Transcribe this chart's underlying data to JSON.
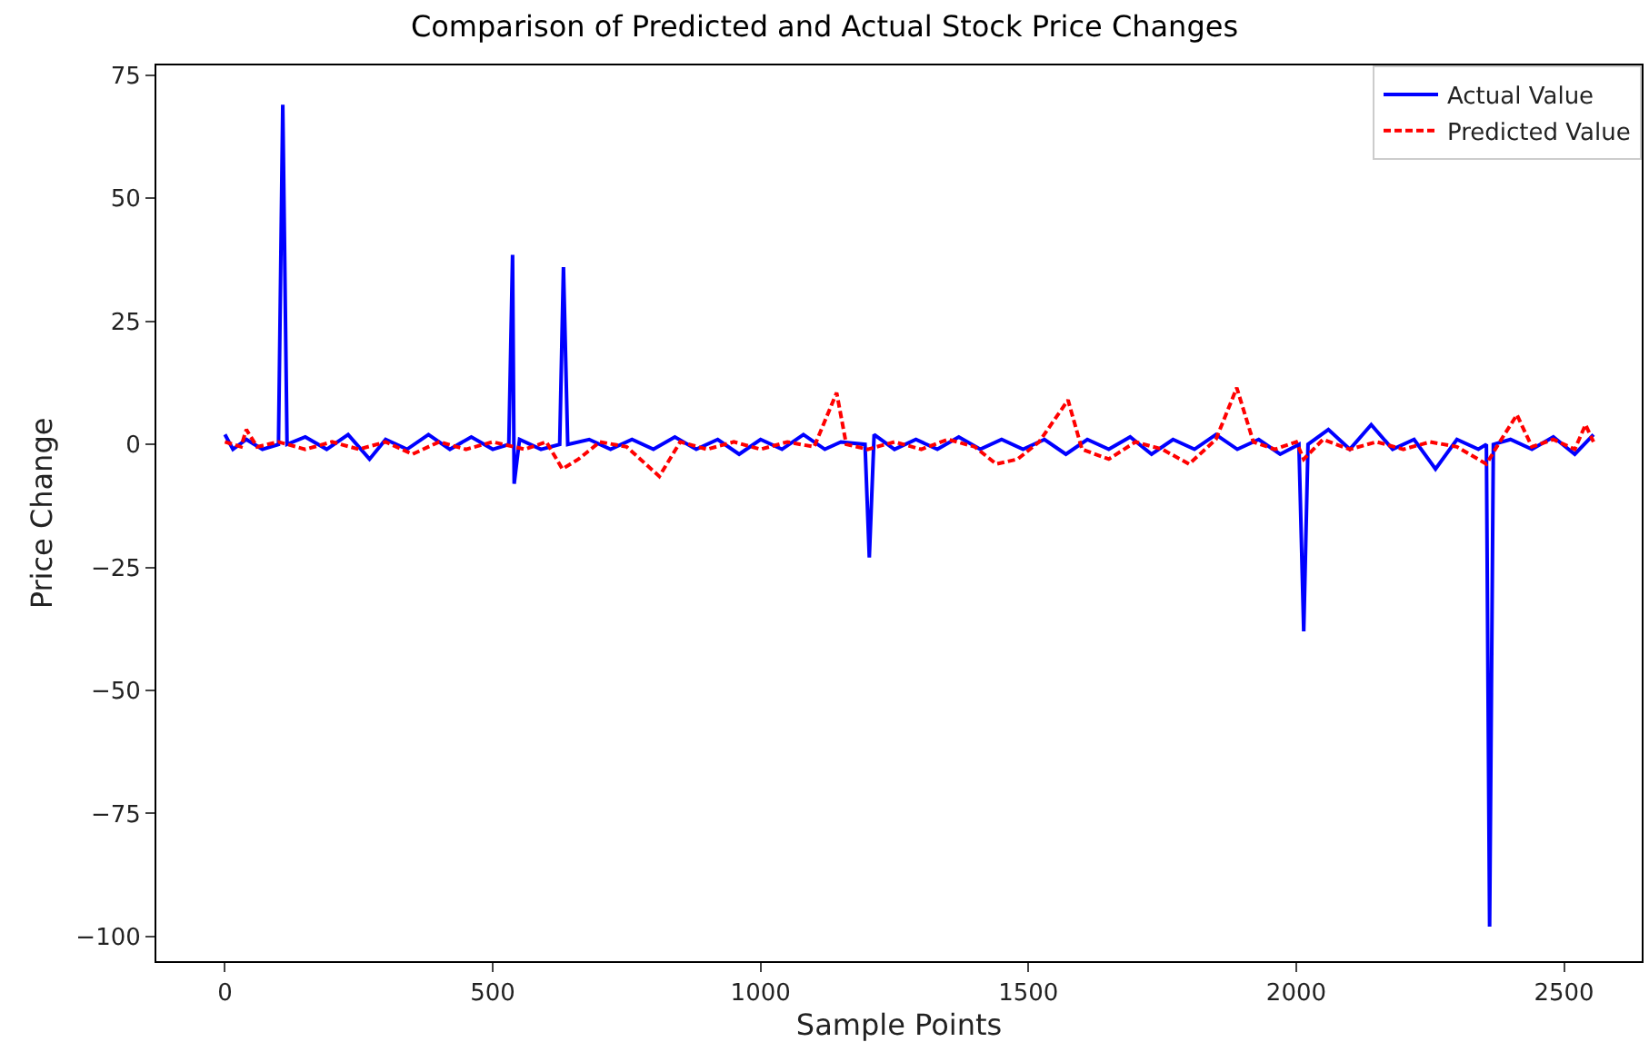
{
  "chart_data": {
    "type": "line",
    "title": "Comparison of Predicted and Actual Stock Price Changes",
    "xlabel": "Sample Points",
    "ylabel": "Price Change",
    "xlim": [
      -128,
      2645
    ],
    "ylim": [
      -105,
      77
    ],
    "xticks": [
      0,
      500,
      1000,
      1500,
      2000,
      2500
    ],
    "yticks": [
      -100,
      -75,
      -50,
      -25,
      0,
      25,
      50,
      75
    ],
    "grid": false,
    "legend": "top right",
    "marker": "none",
    "series": [
      {
        "name": "Actual Value",
        "color": "#0000ff",
        "line_style": "solid",
        "x": [
          0,
          15,
          40,
          70,
          100,
          108,
          116,
          150,
          190,
          230,
          270,
          300,
          340,
          380,
          420,
          460,
          500,
          530,
          537,
          540,
          550,
          590,
          625,
          632,
          640,
          680,
          720,
          760,
          800,
          840,
          880,
          920,
          960,
          1000,
          1040,
          1080,
          1120,
          1150,
          1195,
          1203,
          1212,
          1250,
          1290,
          1330,
          1370,
          1410,
          1450,
          1490,
          1530,
          1570,
          1610,
          1650,
          1690,
          1730,
          1770,
          1810,
          1850,
          1890,
          1930,
          1970,
          2005,
          2014,
          2022,
          2060,
          2100,
          2140,
          2180,
          2220,
          2260,
          2300,
          2340,
          2355,
          2361,
          2368,
          2400,
          2440,
          2480,
          2520,
          2555
        ],
        "values": [
          2,
          -1,
          1,
          -1,
          0,
          69,
          0,
          1.5,
          -1,
          2,
          -3,
          1,
          -1,
          2,
          -1,
          1.5,
          -1,
          0,
          38.5,
          -8,
          1,
          -1,
          0,
          36,
          0,
          1,
          -1,
          1,
          -1,
          1.5,
          -1,
          1,
          -2,
          1,
          -1,
          2,
          -1,
          0.5,
          0,
          -23,
          2,
          -1,
          1,
          -1,
          1.5,
          -1,
          1,
          -1,
          1,
          -2,
          1,
          -1,
          1.5,
          -2,
          1,
          -1,
          2,
          -1,
          1,
          -2,
          0,
          -38,
          0,
          3,
          -1,
          4,
          -1,
          1,
          -5,
          1,
          -1,
          0,
          -98,
          0,
          1,
          -1,
          1.5,
          -2,
          2
        ]
      },
      {
        "name": "Predicted Value",
        "color": "#ff0000",
        "line_style": "dashed",
        "x": [
          0,
          30,
          40,
          60,
          100,
          150,
          200,
          250,
          300,
          350,
          400,
          450,
          500,
          560,
          600,
          630,
          660,
          700,
          750,
          811,
          850,
          900,
          950,
          1000,
          1050,
          1100,
          1142,
          1160,
          1200,
          1250,
          1300,
          1350,
          1400,
          1440,
          1480,
          1520,
          1574,
          1600,
          1650,
          1700,
          1750,
          1800,
          1850,
          1889,
          1920,
          1960,
          2000,
          2014,
          2050,
          2100,
          2150,
          2200,
          2250,
          2300,
          2355,
          2380,
          2412,
          2440,
          2480,
          2520,
          2540,
          2555
        ],
        "values": [
          0.5,
          -0.5,
          3,
          -0.5,
          0.5,
          -1,
          0.5,
          -1,
          0.5,
          -2,
          0.5,
          -1,
          0.5,
          -1,
          0.5,
          -5,
          -3,
          0.5,
          -0.5,
          -6.5,
          0.5,
          -1,
          0.5,
          -1,
          0.5,
          -0.5,
          10.5,
          0,
          -1,
          0.5,
          -1,
          1,
          -0.5,
          -4,
          -3,
          0.5,
          9,
          -1,
          -3,
          0.5,
          -1,
          -4,
          1,
          11.5,
          0.5,
          -1,
          0.5,
          -3,
          1,
          -1,
          0.5,
          -1,
          0.5,
          -0.5,
          -4,
          0.5,
          6,
          -0.5,
          1,
          -1,
          4,
          0.5
        ]
      }
    ]
  }
}
